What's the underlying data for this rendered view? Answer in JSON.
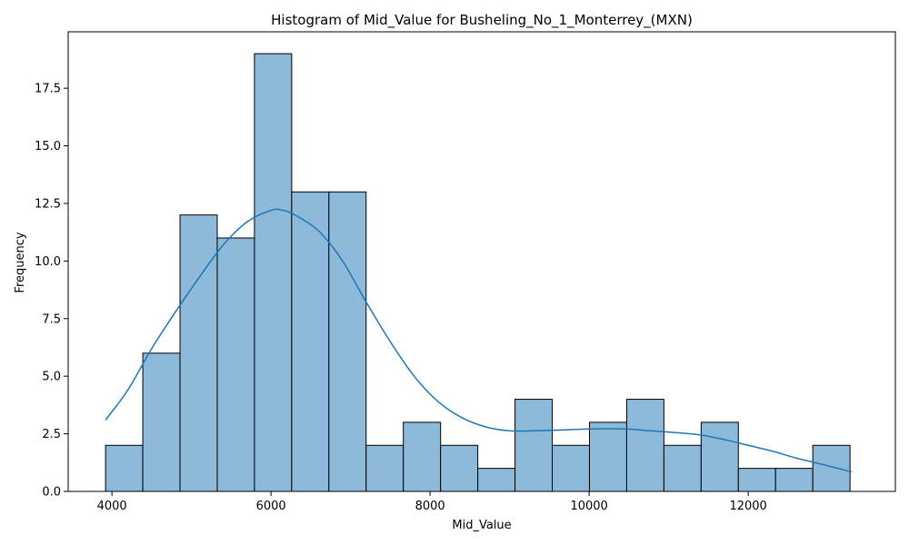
{
  "chart_data": {
    "type": "bar",
    "title": "Histogram of Mid_Value for Busheling_No_1_Monterrey_(MXN)",
    "xlabel": "Mid_Value",
    "ylabel": "Frequency",
    "xlim": [
      3450,
      13850
    ],
    "ylim": [
      0,
      19.95
    ],
    "x_ticks": [
      4000,
      6000,
      8000,
      10000,
      12000
    ],
    "x_tick_labels": [
      "4000",
      "6000",
      "8000",
      "10000",
      "12000"
    ],
    "y_ticks": [
      0,
      2.5,
      5,
      7.5,
      10,
      12.5,
      15,
      17.5
    ],
    "y_tick_labels": [
      "0.0",
      "2.5",
      "5.0",
      "7.5",
      "10.0",
      "12.5",
      "15.0",
      "17.5"
    ],
    "bin_edges": [
      3920,
      4388,
      4856,
      5324,
      5792,
      6260,
      6728,
      7196,
      7664,
      8132,
      8600,
      9068,
      9536,
      10004,
      10472,
      10940,
      11408,
      11876,
      12344,
      12812,
      13280
    ],
    "counts": [
      2,
      6,
      12,
      11,
      19,
      13,
      13,
      2,
      3,
      2,
      1,
      4,
      2,
      3,
      4,
      2,
      3,
      1,
      1,
      2
    ],
    "bar_color": "#8db9da",
    "bar_edge_color": "#000000",
    "kde": {
      "color": "#1f77b4",
      "x": [
        3920,
        4200,
        4500,
        4800,
        5100,
        5400,
        5700,
        6000,
        6150,
        6300,
        6600,
        6900,
        7200,
        7500,
        7800,
        8100,
        8400,
        8700,
        9000,
        9300,
        9600,
        9900,
        10200,
        10500,
        10800,
        11100,
        11400,
        11700,
        12000,
        12300,
        12600,
        12900,
        13300
      ],
      "y": [
        3.1,
        4.4,
        6.2,
        7.8,
        9.3,
        10.7,
        11.7,
        12.2,
        12.2,
        12.0,
        11.3,
        10.0,
        8.2,
        6.5,
        5.0,
        3.9,
        3.2,
        2.8,
        2.63,
        2.63,
        2.66,
        2.7,
        2.72,
        2.7,
        2.62,
        2.55,
        2.45,
        2.25,
        2.0,
        1.75,
        1.45,
        1.2,
        0.85
      ]
    }
  }
}
